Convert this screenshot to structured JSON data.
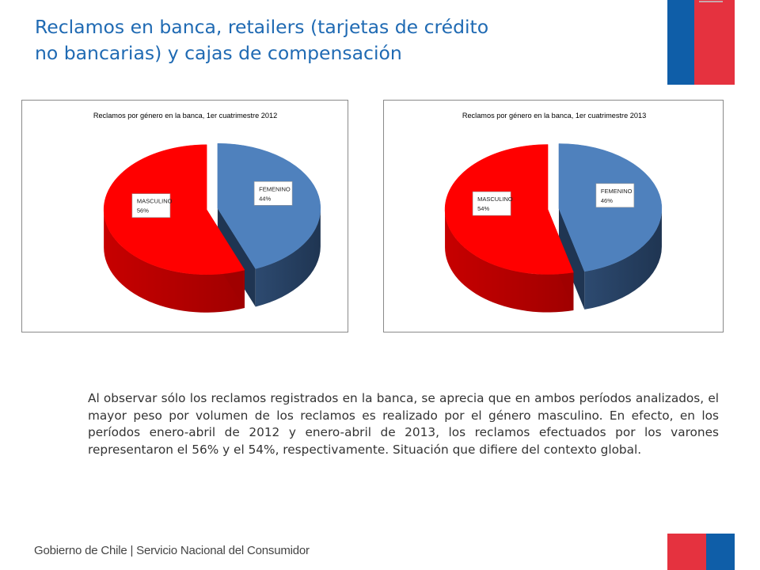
{
  "header": {
    "title_line1": "Reclamos en banca, retailers (tarjetas de crédito",
    "title_line2": "no bancarias) y cajas de compensación"
  },
  "colors": {
    "title": "#1f6ab3",
    "masculino": "#ff0000",
    "femenino": "#4f81bd",
    "flag_blue": "#0f5ea8",
    "flag_red": "#e5323f"
  },
  "chart_data": [
    {
      "type": "pie",
      "title": "Reclamos por género en la banca, 1er cuatrimestre 2012",
      "categories": [
        "FEMENINO",
        "MASCULINO"
      ],
      "values": [
        44,
        56
      ],
      "data_labels": [
        "44%",
        "56%"
      ],
      "style": "3d-exploded"
    },
    {
      "type": "pie",
      "title": "Reclamos por género en la banca, 1er cuatrimestre 2013",
      "categories": [
        "FEMENINO",
        "MASCULINO"
      ],
      "values": [
        46,
        54
      ],
      "data_labels": [
        "46%",
        "54%"
      ],
      "style": "3d-exploded"
    }
  ],
  "body_text": "Al observar sólo los reclamos registrados en la banca, se aprecia que en ambos períodos analizados, el mayor peso por volumen de los reclamos es realizado por el género masculino. En efecto, en los períodos enero-abril de 2012 y enero-abril de 2013, los reclamos efectuados por los varones representaron el 56% y el 54%, respectivamente. Situación que difiere del contexto global.",
  "footer": {
    "text": "Gobierno de Chile | Servicio Nacional del Consumidor"
  }
}
